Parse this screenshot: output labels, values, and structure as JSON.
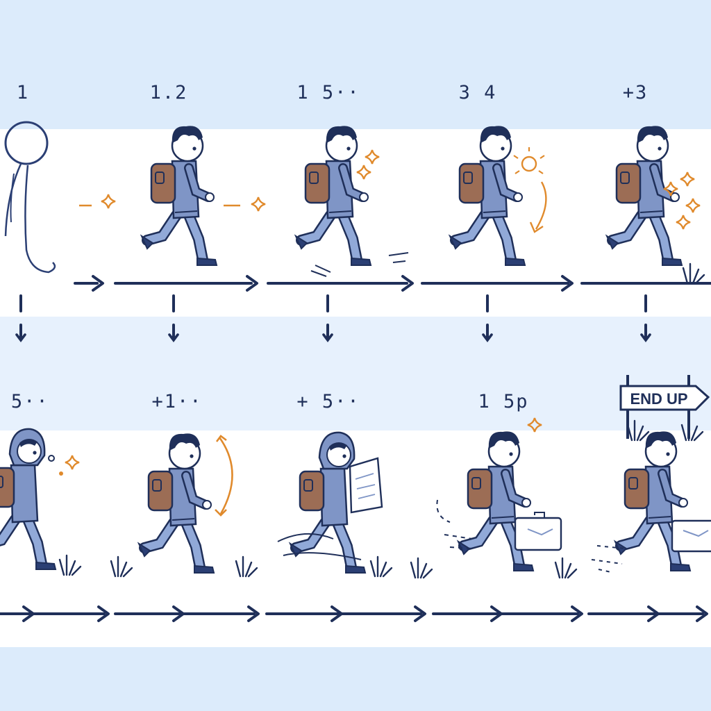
{
  "colors": {
    "ink": "#1f2f59",
    "jacket": "#7f95c6",
    "pants": "#91a9d8",
    "backpack": "#9c6d55",
    "sparkle": "#e08a2c",
    "skin": "#ffffff"
  },
  "rows": [
    {
      "frames": [
        {
          "label": "1",
          "figure": "stick-figure"
        },
        {
          "label": "1.2",
          "figure": "walker"
        },
        {
          "label": "1 5··",
          "figure": "walker"
        },
        {
          "label": "3 4",
          "figure": "walker"
        },
        {
          "label": "+3",
          "figure": "walker"
        }
      ]
    },
    {
      "frames": [
        {
          "label": "+ 5··",
          "figure": "hooded-walker"
        },
        {
          "label": "+1··",
          "figure": "walker-arm-up"
        },
        {
          "label": "+ 5··",
          "figure": "hooded-reader"
        },
        {
          "label": "1 5p",
          "figure": "walker-briefcase"
        },
        {
          "label": "",
          "figure": "walker-briefcase"
        }
      ]
    }
  ],
  "sign": {
    "text": "END UP"
  }
}
